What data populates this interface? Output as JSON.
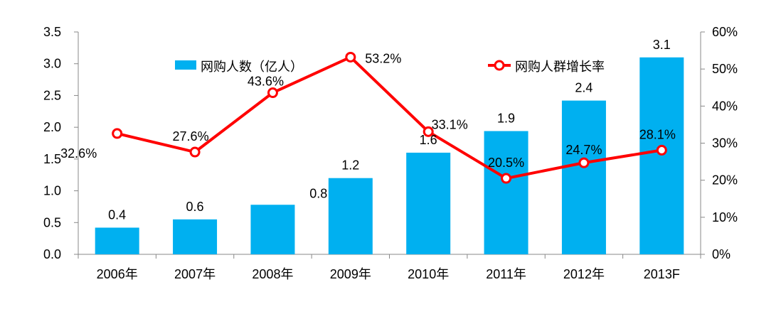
{
  "chart_data": {
    "type": "bar",
    "categories": [
      "2006年",
      "2007年",
      "2008年",
      "2009年",
      "2010年",
      "2011年",
      "2012年",
      "2013F"
    ],
    "series": [
      {
        "name": "网购人数（亿人）",
        "type": "bar",
        "axis": "left",
        "color": "#00B0F0",
        "values": [
          0.42,
          0.55,
          0.78,
          1.2,
          1.6,
          1.94,
          2.42,
          3.1
        ],
        "labels": [
          "0.4",
          "0.6",
          "0.8",
          "1.2",
          "1.6",
          "1.9",
          "2.4",
          "3.1"
        ]
      },
      {
        "name": "网购人群增长率",
        "type": "line",
        "axis": "right",
        "color": "#FF0000",
        "values": [
          32.6,
          27.6,
          43.6,
          53.2,
          33.1,
          20.5,
          24.7,
          28.1
        ],
        "labels": [
          "32.6%",
          "27.6%",
          "43.6%",
          "53.2%",
          "33.1%",
          "20.5%",
          "24.7%",
          "28.1%"
        ]
      }
    ],
    "ylim_left": [
      0,
      3.5
    ],
    "yticks_left": [
      "0.0",
      "0.5",
      "1.0",
      "1.5",
      "2.0",
      "2.5",
      "3.0",
      "3.5"
    ],
    "ylim_right": [
      0,
      60
    ],
    "yticks_right": [
      "0%",
      "10%",
      "20%",
      "30%",
      "40%",
      "50%",
      "60%"
    ],
    "legend": "top",
    "grid": false
  }
}
